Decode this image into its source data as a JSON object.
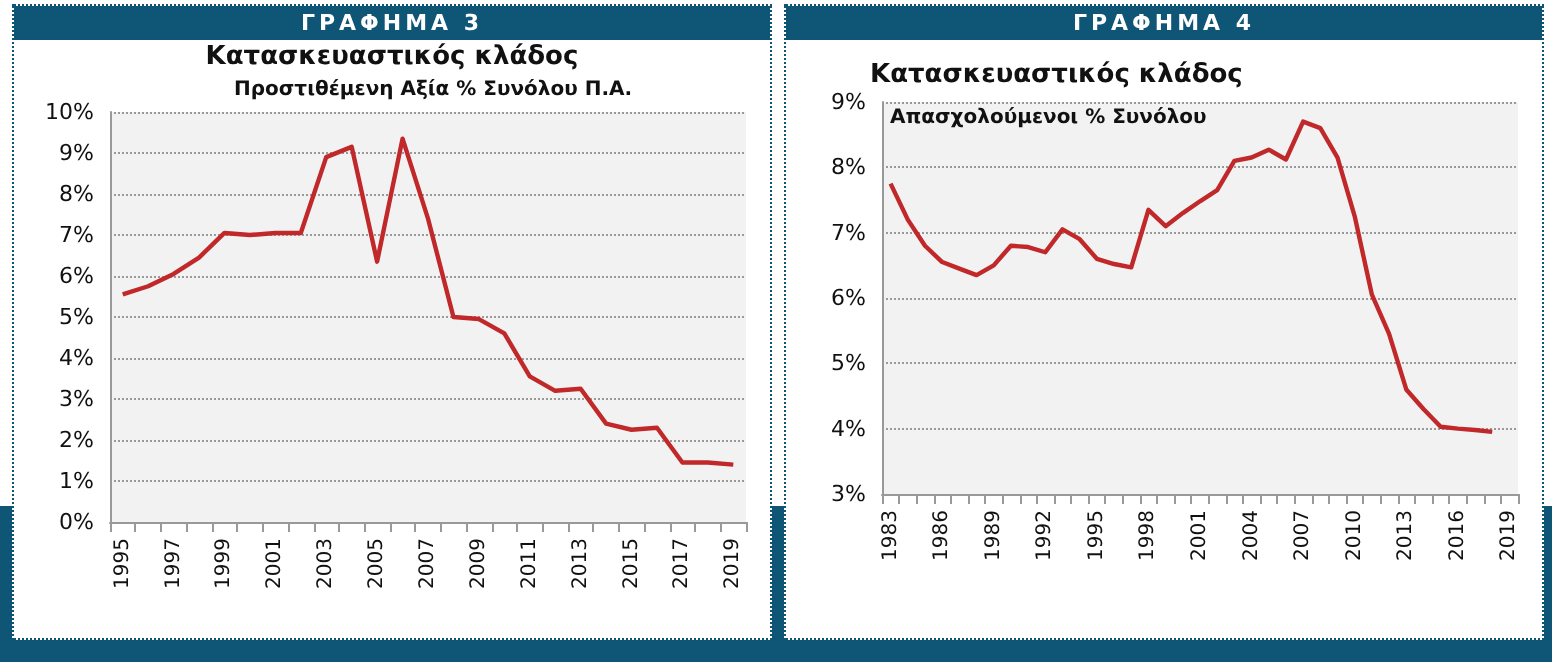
{
  "chart_data": [
    {
      "type": "line",
      "title": "ΓΡΑΦΗΜΑ 3",
      "subtitle": "Κατασκευαστικός κλάδος",
      "annotations": [
        "Προστιθέμενη Αξία % Συνόλου Π.Α."
      ],
      "categories": [
        "1995",
        null,
        "1997",
        null,
        "1999",
        null,
        "2001",
        null,
        "2003",
        null,
        "2005",
        null,
        "2007",
        null,
        "2009",
        null,
        "2011",
        null,
        "2013",
        null,
        "2015",
        null,
        "2017",
        null,
        "2019"
      ],
      "series": [
        {
          "color": "#c0282a",
          "values": [
            5.55,
            5.75,
            6.05,
            6.45,
            7.05,
            7.0,
            7.05,
            7.05,
            8.9,
            9.15,
            6.35,
            9.35,
            7.4,
            5.0,
            4.95,
            4.6,
            3.55,
            3.2,
            3.25,
            2.4,
            2.25,
            2.3,
            1.45,
            1.45,
            1.4
          ]
        }
      ],
      "ylim": [
        0,
        10
      ],
      "yticks": [
        {
          "value": 0,
          "label": "0%"
        },
        {
          "value": 1,
          "label": "1%"
        },
        {
          "value": 2,
          "label": "2%"
        },
        {
          "value": 3,
          "label": "3%"
        },
        {
          "value": 4,
          "label": "4%"
        },
        {
          "value": 5,
          "label": "5%"
        },
        {
          "value": 6,
          "label": "6%"
        },
        {
          "value": 7,
          "label": "7%"
        },
        {
          "value": 8,
          "label": "8%"
        },
        {
          "value": 9,
          "label": "9%"
        },
        {
          "value": 10,
          "label": "10%"
        }
      ],
      "grid": "y",
      "marker": "none",
      "line_style": "solid"
    },
    {
      "type": "line",
      "title": "ΓΡΑΦΗΜΑ 4",
      "subtitle": "Κατασκευαστικός κλάδος",
      "annotations": [
        "Απασχολούμενοι % Συνόλου"
      ],
      "categories": [
        "1983",
        null,
        null,
        "1986",
        null,
        null,
        "1989",
        null,
        null,
        "1992",
        null,
        null,
        "1995",
        null,
        null,
        "1998",
        null,
        null,
        "2001",
        null,
        null,
        "2004",
        null,
        null,
        "2007",
        null,
        null,
        "2010",
        null,
        null,
        "2013",
        null,
        null,
        "2016",
        null,
        null,
        "2019"
      ],
      "series": [
        {
          "color": "#c0282a",
          "values": [
            7.75,
            7.2,
            6.8,
            6.55,
            6.45,
            6.35,
            6.5,
            6.8,
            6.78,
            6.7,
            7.05,
            6.9,
            6.6,
            6.52,
            6.47,
            7.35,
            7.1,
            7.3,
            7.48,
            7.65,
            8.1,
            8.15,
            8.27,
            8.12,
            8.7,
            8.6,
            8.15,
            7.25,
            6.05,
            5.45,
            4.6,
            4.3,
            4.03,
            4.0,
            3.98,
            3.95,
            null
          ]
        }
      ],
      "ylim": [
        3,
        9
      ],
      "yticks": [
        {
          "value": 3,
          "label": "3%"
        },
        {
          "value": 4,
          "label": "4%"
        },
        {
          "value": 5,
          "label": "5%"
        },
        {
          "value": 6,
          "label": "6%"
        },
        {
          "value": 7,
          "label": "7%"
        },
        {
          "value": 8,
          "label": "8%"
        },
        {
          "value": 9,
          "label": "9%"
        }
      ],
      "grid": "y",
      "marker": "none",
      "line_style": "solid"
    }
  ]
}
